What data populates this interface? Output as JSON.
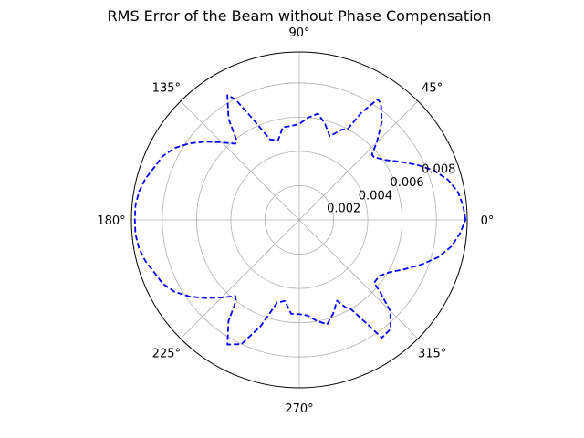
{
  "chart_data": {
    "type": "polar-line",
    "title": "RMS Error of the Beam without Phase Compensation",
    "angle_unit": "degrees",
    "angle_ticks": [
      "0°",
      "45°",
      "90°",
      "135°",
      "180°",
      "225°",
      "270°",
      "315°"
    ],
    "radial_ticks": [
      "0.002",
      "0.004",
      "0.006",
      "0.008"
    ],
    "radial_tick_values": [
      0.002,
      0.004,
      0.006,
      0.008
    ],
    "rlim": [
      0,
      0.0098
    ],
    "grid": true,
    "line_style": "dashed",
    "line_color": "#0000ff",
    "series": [
      {
        "theta": [
          0,
          5,
          10,
          15,
          20,
          25,
          30,
          35,
          40,
          42,
          45,
          50,
          55,
          57,
          60,
          62,
          65,
          70,
          75,
          80,
          85,
          90,
          95,
          100,
          105,
          110,
          115,
          118,
          120,
          125,
          128,
          130,
          135,
          140,
          145,
          150,
          155,
          160,
          165,
          170,
          175,
          180,
          185,
          190,
          195,
          200,
          205,
          210,
          215,
          220,
          225,
          230,
          232,
          235,
          240,
          245,
          250,
          255,
          260,
          265,
          270,
          275,
          280,
          285,
          290,
          295,
          298,
          300,
          303,
          305,
          310,
          315,
          318,
          320,
          325,
          330,
          335,
          340,
          345,
          350,
          355,
          360
        ],
        "r": [
          0.0097,
          0.0096,
          0.0094,
          0.009,
          0.0084,
          0.0076,
          0.0068,
          0.0061,
          0.0057,
          0.0057,
          0.0064,
          0.0075,
          0.0083,
          0.0084,
          0.0072,
          0.006,
          0.0058,
          0.0052,
          0.0058,
          0.0063,
          0.006,
          0.0056,
          0.0055,
          0.0055,
          0.0048,
          0.005,
          0.0066,
          0.008,
          0.0084,
          0.0072,
          0.006,
          0.0058,
          0.0064,
          0.0071,
          0.0078,
          0.0084,
          0.0088,
          0.009,
          0.0093,
          0.0095,
          0.0096,
          0.0096,
          0.0096,
          0.0095,
          0.0093,
          0.009,
          0.0088,
          0.0084,
          0.0078,
          0.0071,
          0.0064,
          0.0058,
          0.006,
          0.0072,
          0.0084,
          0.008,
          0.0066,
          0.005,
          0.0048,
          0.0055,
          0.0055,
          0.0056,
          0.006,
          0.0063,
          0.0058,
          0.0052,
          0.0058,
          0.006,
          0.0072,
          0.0084,
          0.0083,
          0.0075,
          0.0064,
          0.0057,
          0.0057,
          0.0061,
          0.0068,
          0.0076,
          0.0084,
          0.009,
          0.0094,
          0.0097
        ]
      }
    ]
  }
}
